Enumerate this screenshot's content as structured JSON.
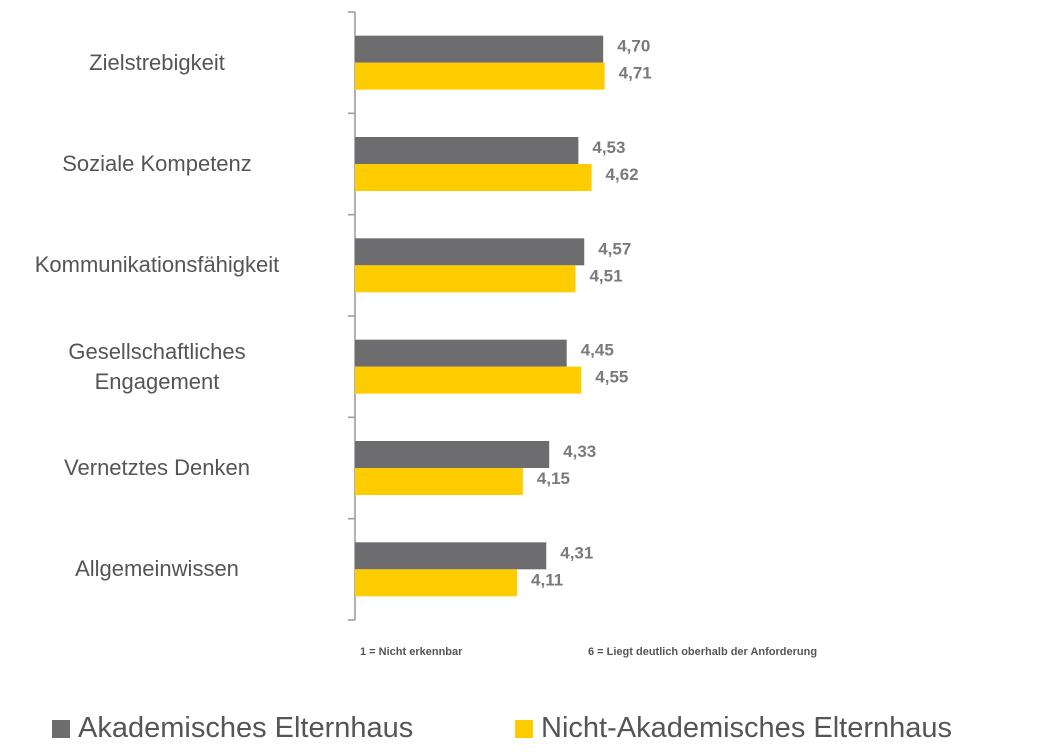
{
  "chart_data": {
    "type": "barh",
    "categories": [
      "Zielstrebigkeit",
      "Soziale Kompetenz",
      "Kommunikationsfähigkeit",
      "Gesellschaftliches\nEngagement",
      "Vernetztes Denken",
      "Allgemeinwissen"
    ],
    "series": [
      {
        "name": "Akademisches Elternhaus",
        "color": "#6d6d70",
        "values": [
          4.7,
          4.53,
          4.57,
          4.45,
          4.33,
          4.31
        ],
        "value_labels": [
          "4,70",
          "4,53",
          "4,57",
          "4,45",
          "4,33",
          "4,31"
        ]
      },
      {
        "name": "Nicht-Akademisches Elternhaus",
        "color": "#ffcc00",
        "values": [
          4.71,
          4.62,
          4.51,
          4.55,
          4.15,
          4.11
        ],
        "value_labels": [
          "4,71",
          "4,62",
          "4,51",
          "4,55",
          "4,15",
          "4,11"
        ]
      }
    ],
    "xlim": [
      3,
      6
    ],
    "annotations": [
      "1 = Nicht erkennbar",
      "6 = Liegt deutlich oberhalb der Anforderung"
    ]
  }
}
